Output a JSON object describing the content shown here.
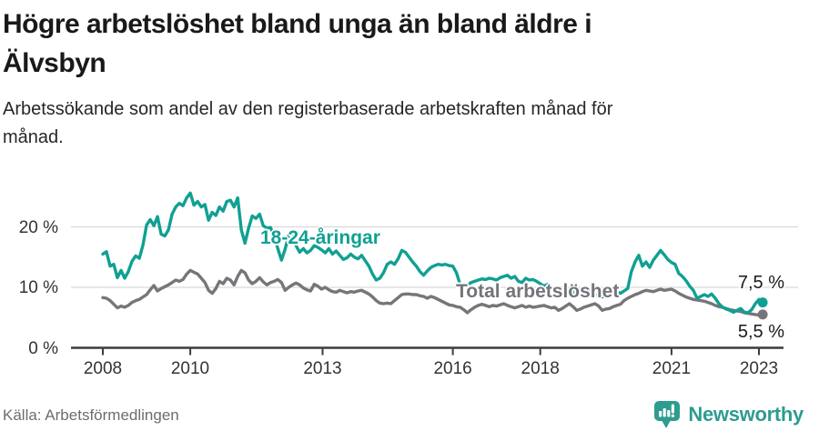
{
  "header": {
    "title_lines": [
      "Högre arbetslöshet bland unga än bland äldre i",
      "Älvsbyn"
    ],
    "subtitle_lines": [
      "Arbetssökande som andel av den registerbaserade arbetskraften månad för",
      "månad."
    ]
  },
  "chart_data": {
    "type": "line",
    "unit": "%",
    "frequency": "monthly",
    "start": "2008-01",
    "end": "2023-02",
    "grid": "horizontal",
    "ylim": [
      0,
      27
    ],
    "x_ticks": [
      "2008",
      "2010",
      "2013",
      "2016",
      "2018",
      "2021",
      "2023"
    ],
    "y_ticks": [
      {
        "label": "0 %",
        "value": 0
      },
      {
        "label": "10 %",
        "value": 10
      },
      {
        "label": "20 %",
        "value": 20
      }
    ],
    "series": [
      {
        "name": "18-24-åringar",
        "color": "#10a093",
        "end_label": "7,5 %",
        "last_value": 7.5,
        "values": [
          15.5,
          15.9,
          13.5,
          13.8,
          11.6,
          12.8,
          11.5,
          12.6,
          14.3,
          15.2,
          14.8,
          17.0,
          20.3,
          21.2,
          20.2,
          21.7,
          18.8,
          18.5,
          19.5,
          22.1,
          23.3,
          23.9,
          23.5,
          24.8,
          25.6,
          23.6,
          24.2,
          23.3,
          23.7,
          21.1,
          22.4,
          21.9,
          23.3,
          22.6,
          24.2,
          24.4,
          23.3,
          24.8,
          19.5,
          17.3,
          19.8,
          21.8,
          21.4,
          22.1,
          20.2,
          19.8,
          19.9,
          18.4,
          16.4,
          14.5,
          16.3,
          18.6,
          19.4,
          16.9,
          15.8,
          16.4,
          15.7,
          16.1,
          16.9,
          16.6,
          16.2,
          15.7,
          16.4,
          15.5,
          16.0,
          15.3,
          14.6,
          14.9,
          15.5,
          15.0,
          14.7,
          15.3,
          14.4,
          13.5,
          12.2,
          11.2,
          11.5,
          12.4,
          13.8,
          14.2,
          13.8,
          14.7,
          16.1,
          15.8,
          15.0,
          14.2,
          13.5,
          12.6,
          12.0,
          12.7,
          13.3,
          13.6,
          13.8,
          13.7,
          13.8,
          13.6,
          13.5,
          12.4,
          10.5,
          10.0,
          10.3,
          10.8,
          11.0,
          11.2,
          11.4,
          11.3,
          11.5,
          11.4,
          11.2,
          11.6,
          11.8,
          12.0,
          11.5,
          11.8,
          11.0,
          10.8,
          11.5,
          11.2,
          11.3,
          11.0,
          10.6,
          10.2,
          10.5,
          10.0,
          9.6,
          9.3,
          9.8,
          10.1,
          9.7,
          9.3,
          9.0,
          8.8,
          9.2,
          9.5,
          9.0,
          8.6,
          8.9,
          8.4,
          8.7,
          9.1,
          8.8,
          9.2,
          9.0,
          9.4,
          9.8,
          12.6,
          14.2,
          15.3,
          13.5,
          14.2,
          13.3,
          14.5,
          15.3,
          16.1,
          15.4,
          14.6,
          14.1,
          13.8,
          12.3,
          11.8,
          11.1,
          10.2,
          9.5,
          8.2,
          8.5,
          8.8,
          8.5,
          8.9,
          8.2,
          7.3,
          6.7,
          6.4,
          6.2,
          5.9,
          6.2,
          6.5,
          5.9,
          5.8,
          6.3,
          7.3,
          8.0,
          7.5
        ]
      },
      {
        "name": "Total arbetslöshet",
        "color": "#77757a",
        "end_label": "5,5 %",
        "last_value": 5.5,
        "values": [
          8.3,
          8.2,
          7.8,
          7.2,
          6.6,
          6.9,
          6.7,
          7.0,
          7.5,
          7.8,
          8.0,
          8.4,
          8.8,
          9.6,
          10.3,
          9.4,
          9.8,
          10.1,
          10.4,
          10.8,
          11.2,
          11.0,
          11.3,
          12.2,
          12.8,
          12.5,
          12.2,
          11.5,
          10.8,
          9.5,
          9.0,
          9.8,
          11.0,
          10.6,
          11.5,
          11.2,
          10.4,
          11.8,
          12.8,
          12.4,
          11.2,
          10.6,
          11.0,
          11.6,
          10.9,
          10.4,
          10.8,
          11.0,
          11.3,
          10.8,
          9.5,
          10.0,
          10.4,
          10.7,
          10.4,
          9.9,
          9.6,
          9.4,
          10.5,
          10.2,
          9.7,
          10.0,
          9.6,
          9.3,
          9.2,
          9.5,
          9.3,
          9.1,
          9.3,
          9.2,
          9.4,
          9.5,
          9.2,
          8.9,
          8.4,
          7.8,
          7.4,
          7.3,
          7.4,
          7.3,
          7.8,
          8.3,
          8.8,
          8.9,
          8.9,
          8.8,
          8.8,
          8.6,
          8.5,
          8.2,
          8.5,
          8.3,
          8.0,
          7.7,
          7.4,
          7.1,
          7.0,
          6.8,
          6.7,
          6.3,
          5.8,
          6.3,
          6.7,
          7.0,
          7.2,
          7.0,
          6.8,
          7.0,
          6.9,
          7.1,
          7.3,
          7.0,
          6.8,
          6.6,
          6.8,
          7.0,
          6.7,
          6.9,
          6.7,
          6.8,
          6.9,
          7.0,
          6.8,
          6.6,
          6.7,
          6.2,
          6.5,
          6.9,
          7.3,
          6.8,
          6.2,
          6.4,
          6.7,
          6.9,
          7.1,
          7.3,
          6.9,
          6.2,
          6.4,
          6.5,
          6.8,
          7.0,
          7.2,
          7.8,
          8.2,
          8.5,
          8.8,
          9.0,
          9.3,
          9.5,
          9.4,
          9.3,
          9.5,
          9.7,
          9.5,
          9.6,
          9.7,
          9.4,
          9.0,
          8.7,
          8.4,
          8.2,
          8.0,
          7.9,
          7.8,
          7.7,
          7.5,
          7.3,
          7.0,
          6.8,
          6.7,
          6.5,
          6.3,
          6.2,
          6.1,
          6.0,
          5.8,
          5.7,
          5.6,
          5.5,
          5.4,
          5.5
        ]
      }
    ]
  },
  "footer": {
    "source": "Källa: Arbetsförmedlingen",
    "brand": "Newsworthy",
    "brand_color": "#2e9c8f"
  }
}
